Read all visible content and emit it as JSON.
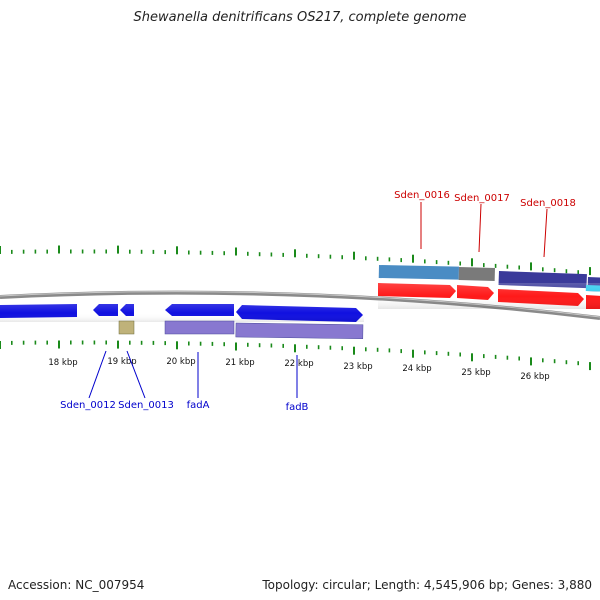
{
  "title": "Shewanella denitrificans OS217, complete genome",
  "footer": {
    "accession": "Accession: NC_007954",
    "summary": "Topology: circular; Length: 4,545,906 bp; Genes: 3,880"
  },
  "colors": {
    "forward_cds": "#ff1a1a",
    "reverse_cds": "#1010e0",
    "pseudo": "#bfb27a",
    "purple_gene": "#8878d0",
    "steel_gene": "#4a8cc4",
    "grey_gene": "#7a7a7a",
    "navy_gene": "#3a3a9a",
    "cyan_gene": "#33ccee",
    "backbone": "#8a8a8a",
    "ticks": "#1a8a1a",
    "fwd_labels": "#cc0000",
    "rev_labels": "#0000cc"
  },
  "scale_labels": [
    "18 kbp",
    "19 kbp",
    "20 kbp",
    "21 kbp",
    "22 kbp",
    "23 kbp",
    "24 kbp",
    "25 kbp",
    "26 kbp"
  ],
  "forward_labels": [
    "Sden_0016",
    "Sden_0017",
    "Sden_0018"
  ],
  "reverse_labels": [
    "Sden_0012",
    "Sden_0013",
    "fadA",
    "fadB"
  ]
}
